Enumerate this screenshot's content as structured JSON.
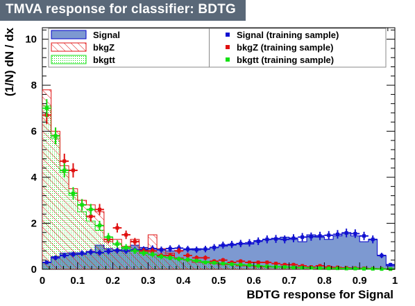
{
  "title": "TMVA response for classifier: BDTG",
  "legend_left": [
    {
      "label": "Signal",
      "style": "signal-fill"
    },
    {
      "label": "bkgZ",
      "style": "bkgZ-hatch"
    },
    {
      "label": "bkgtt",
      "style": "bkgtt-dots"
    }
  ],
  "legend_right": [
    {
      "label": "Signal (training sample)",
      "color": "#1010d0"
    },
    {
      "label": "bkgZ (training sample)",
      "color": "#e01010"
    },
    {
      "label": "bkgtt (training sample)",
      "color": "#10e010"
    }
  ],
  "colors": {
    "signal_fill": "#7d99d1",
    "signal_line": "#0000cc",
    "bkgZ": "#e01010",
    "bkgtt": "#10e010",
    "title_bg": "#5a6878"
  },
  "chart_data": {
    "type": "histogram",
    "xlabel": "BDTG response for Signal",
    "ylabel": "(1/N) dN / dx",
    "xlim": [
      0,
      1
    ],
    "ylim": [
      0,
      10.5
    ],
    "x_ticks": [
      "0",
      "0.1",
      "0.2",
      "0.3",
      "0.4",
      "0.5",
      "0.6",
      "0.7",
      "0.8",
      "0.9",
      "1"
    ],
    "y_ticks": [
      "0",
      "2",
      "4",
      "6",
      "8",
      "10"
    ],
    "bin_width": 0.025,
    "signal_test": [
      0.3,
      0.55,
      0.7,
      0.72,
      0.65,
      0.78,
      1.05,
      0.9,
      0.85,
      0.95,
      1.05,
      0.95,
      0.9,
      0.85,
      0.8,
      0.82,
      0.85,
      0.9,
      0.88,
      0.95,
      1.0,
      1.05,
      1.1,
      1.1,
      1.25,
      1.3,
      1.35,
      1.4,
      1.3,
      1.2,
      1.5,
      1.4,
      1.3,
      1.45,
      1.6,
      1.45,
      1.2,
      1.3,
      0.6,
      0.15
    ],
    "bkgZ_test": [
      7.8,
      6.0,
      4.5,
      3.5,
      3.0,
      2.8,
      2.5,
      1.2,
      1.3,
      1.0,
      1.3,
      0.7,
      1.5,
      0.9,
      0.7,
      0.5,
      0.4,
      0.3,
      0.3,
      0.25,
      0.2,
      0.2,
      0.15,
      0.15,
      0.1,
      0.1,
      0.12,
      0.1,
      0.1,
      0.08,
      0.06,
      0.05,
      0.05,
      0.04,
      0.03,
      0.03,
      0.03,
      0.02,
      0.02,
      0.01
    ],
    "bkgtt_test": [
      7.1,
      5.7,
      4.2,
      3.2,
      2.5,
      2.1,
      1.7,
      1.4,
      1.1,
      0.9,
      0.85,
      0.75,
      0.65,
      0.55,
      0.5,
      0.45,
      0.4,
      0.4,
      0.35,
      0.3,
      0.27,
      0.22,
      0.2,
      0.16,
      0.14,
      0.12,
      0.1,
      0.09,
      0.08,
      0.07,
      0.06,
      0.05,
      0.04,
      0.04,
      0.03,
      0.03,
      0.02,
      0.02,
      0.01,
      0.01
    ],
    "signal_train": [
      0.3,
      0.5,
      0.6,
      0.65,
      0.7,
      0.75,
      0.72,
      0.78,
      0.82,
      0.8,
      0.84,
      0.86,
      0.9,
      0.85,
      0.9,
      0.92,
      0.88,
      0.85,
      0.88,
      0.95,
      1.05,
      1.08,
      1.12,
      1.15,
      1.22,
      1.3,
      1.32,
      1.3,
      1.35,
      1.4,
      1.42,
      1.45,
      1.48,
      1.52,
      1.58,
      1.55,
      1.45,
      1.3,
      0.6,
      0.2
    ],
    "bkgZ_train": [
      6.7,
      5.8,
      4.7,
      4.3,
      2.8,
      2.3,
      2.6,
      1.3,
      1.8,
      1.5,
      1.2,
      0.8,
      0.8,
      0.6,
      0.6,
      0.8,
      0.6,
      0.5,
      0.5,
      0.35,
      0.4,
      0.3,
      0.35,
      0.3,
      0.3,
      0.3,
      0.25,
      0.2,
      0.2,
      0.15,
      0.1,
      0.15,
      0.1,
      0.08,
      0.06,
      0.05,
      0.04,
      0.03,
      0.02,
      0.01
    ],
    "bkgtt_train": [
      7.0,
      5.8,
      4.3,
      3.3,
      2.8,
      2.6,
      1.9,
      1.4,
      1.1,
      0.95,
      0.8,
      0.7,
      0.65,
      0.55,
      0.5,
      0.45,
      0.42,
      0.37,
      0.3,
      0.28,
      0.25,
      0.22,
      0.2,
      0.18,
      0.15,
      0.13,
      0.11,
      0.1,
      0.08,
      0.07,
      0.06,
      0.05,
      0.04,
      0.04,
      0.03,
      0.03,
      0.02,
      0.02,
      0.01,
      0.01
    ]
  }
}
